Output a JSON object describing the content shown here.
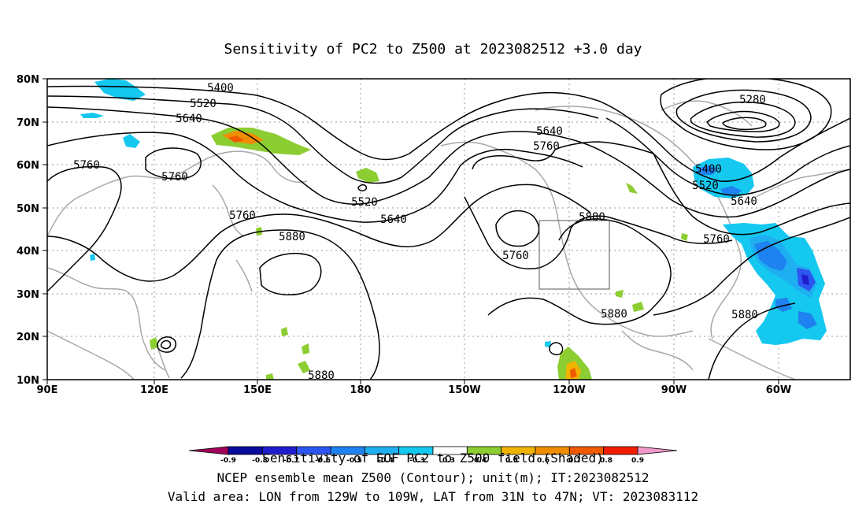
{
  "title": "Sensitivity of PC2 to Z500 at 2023082512 +3.0 day",
  "lat_labels": [
    "80N",
    "70N",
    "60N",
    "50N",
    "40N",
    "30N",
    "20N",
    "10N"
  ],
  "lon_labels": [
    "90E",
    "120E",
    "150E",
    "180",
    "150W",
    "120W",
    "90W",
    "60W"
  ],
  "contour_labels": {
    "c5400a": "5400",
    "c5520a": "5520",
    "c5640a": "5640",
    "c5760a": "5760",
    "c5760b": "5760",
    "c5760c": "5760",
    "c5880a": "5880",
    "c5520b": "5520",
    "c5640b": "5640",
    "c5640c": "5640",
    "c5760d": "5760",
    "c5760e": "5760",
    "c5880b": "5880",
    "c5880c": "5880",
    "c5880d": "5880",
    "c5280": "5280",
    "c5400b": "5400",
    "c5520c": "5520",
    "c5640d": "5640",
    "c5760f": "5760",
    "c5880e": "5880"
  },
  "colorbar": {
    "ticks": [
      "-0.9",
      "-0.8",
      "-0.7",
      "-0.6",
      "-0.5",
      "-0.4",
      "-0.3",
      "0.3",
      "0.4",
      "0.5",
      "0.6",
      "0.7",
      "0.8",
      "0.9"
    ],
    "colors": [
      "#a0005a",
      "#0a0a9c",
      "#1e1ecf",
      "#2d55f0",
      "#1e82f0",
      "#1eaff0",
      "#14c8f0",
      "#ffffff",
      "#8ccd32",
      "#f0b400",
      "#f08c00",
      "#f05a00",
      "#f01e00",
      "#f098c8"
    ]
  },
  "caption_lines": [
    "Sensitivity of EOF PC2 to Z500 field (Shaded)",
    "NCEP ensemble mean Z500 (Contour); unit(m); IT:2023082512",
    "Valid area: LON from 129W to 109W, LAT from 31N to 47N; VT: 2023083112"
  ],
  "colors": {
    "land": "#a8a8a8",
    "grid": "#999999",
    "contour": "#000000"
  }
}
